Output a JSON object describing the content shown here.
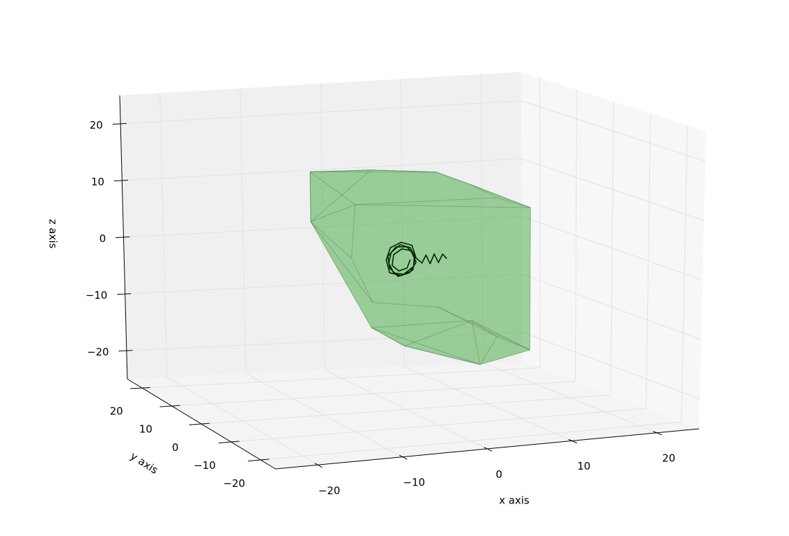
{
  "chart_data": {
    "type": "hull3d",
    "xlabel": "x axis",
    "ylabel": "y axis",
    "zlabel": "z axis",
    "xlim": [
      -25,
      25
    ],
    "ylim": [
      -25,
      25
    ],
    "zlim": [
      -25,
      25
    ],
    "xticks": [
      {
        "value": -20,
        "label": "−20"
      },
      {
        "value": -10,
        "label": "−10"
      },
      0,
      10,
      20
    ],
    "yticks": [
      {
        "value": -20,
        "label": "−20"
      },
      {
        "value": -10,
        "label": "−10"
      },
      0,
      10,
      20
    ],
    "zticks": [
      {
        "value": -20,
        "label": "−20"
      },
      {
        "value": -10,
        "label": "−10"
      },
      0,
      10,
      20
    ],
    "grid": true,
    "hull": {
      "color": "#2ca02c",
      "x": [
        -7.5,
        2,
        10,
        13,
        13,
        3,
        -6,
        -8,
        -7.5,
        -6,
        10,
        9,
        4,
        7,
        -2,
        6,
        -6.5
      ],
      "y": [
        10,
        15,
        15,
        -5,
        -5,
        -15,
        -15,
        -10,
        10,
        0,
        5,
        -5,
        -10,
        -10,
        5,
        5,
        0
      ],
      "z": [
        13.5,
        12,
        11,
        9,
        -15,
        -14,
        -10,
        -8,
        5,
        10,
        11,
        11,
        -8,
        -11,
        -8,
        -9.5,
        1
      ]
    },
    "trajectory": {
      "color": "#002200",
      "x": [
        5,
        4.5,
        4,
        3.5,
        3,
        2.5,
        2,
        1.3,
        0.8,
        -0.5,
        -1.8,
        -2.3,
        -1.9,
        -0.5,
        0.9,
        1.2,
        0.6,
        -0.6,
        -1.7,
        -2,
        -1.4,
        -0.2,
        1,
        1.1,
        0.2,
        -1.1,
        -2.1,
        -1.9,
        -0.9,
        0.5,
        1.3,
        0.7,
        -0.4,
        -1.4,
        -1.6,
        -0.8,
        0.2,
        0.6
      ],
      "y": [
        0,
        0,
        0,
        0,
        0,
        0,
        0,
        0,
        0,
        0,
        0,
        0,
        0,
        0,
        0,
        0,
        0,
        0,
        0,
        0,
        0,
        0,
        0,
        0,
        0,
        0,
        0,
        0,
        0,
        0,
        0,
        0,
        0,
        0,
        0,
        0,
        0,
        0
      ],
      "z": [
        0,
        0.8,
        -0.6,
        0.9,
        -0.7,
        0.8,
        -0.5,
        0.4,
        2.6,
        3.2,
        2.4,
        0.4,
        -1.8,
        -2.4,
        -1.6,
        0.6,
        2.2,
        2.8,
        1.6,
        -0.2,
        -1.9,
        -2.2,
        -1,
        0.9,
        2.4,
        2.5,
        1,
        -1,
        -2.5,
        -2,
        -0.3,
        1.7,
        2.1,
        1.2,
        -0.6,
        -1.6,
        -1.2,
        0.2
      ]
    }
  }
}
